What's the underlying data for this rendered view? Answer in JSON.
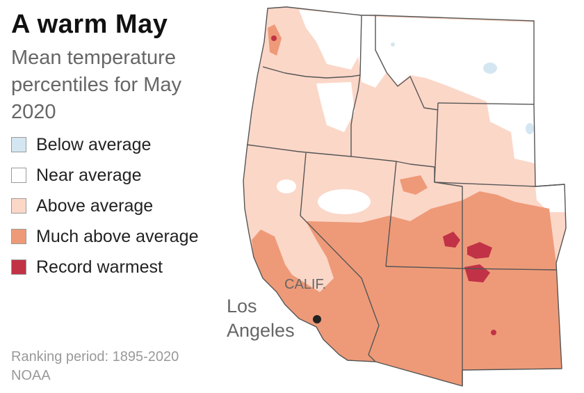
{
  "title": "A warm May",
  "subtitle": "Mean temperature percentiles for May 2020",
  "legend": [
    {
      "label": "Below average",
      "color": "#d4e6f1"
    },
    {
      "label": "Near average",
      "color": "#ffffff"
    },
    {
      "label": "Above average",
      "color": "#fbd7c8"
    },
    {
      "label": "Much above average",
      "color": "#ee9a78"
    },
    {
      "label": "Record warmest",
      "color": "#c13247"
    }
  ],
  "map": {
    "state_label": "CALIF.",
    "city_label_line1": "Los",
    "city_label_line2": "Angeles"
  },
  "footer": {
    "period": "Ranking period: 1895-2020",
    "source": "NOAA"
  }
}
